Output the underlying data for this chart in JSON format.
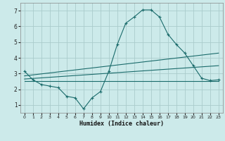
{
  "xlabel": "Humidex (Indice chaleur)",
  "background_color": "#cceaea",
  "grid_color": "#aacccc",
  "line_color": "#1a6b6b",
  "xlim": [
    -0.5,
    23.5
  ],
  "ylim": [
    0.5,
    7.5
  ],
  "xticks": [
    0,
    1,
    2,
    3,
    4,
    5,
    6,
    7,
    8,
    9,
    10,
    11,
    12,
    13,
    14,
    15,
    16,
    17,
    18,
    19,
    20,
    21,
    22,
    23
  ],
  "yticks": [
    1,
    2,
    3,
    4,
    5,
    6,
    7
  ],
  "curve1_x": [
    0,
    1,
    2,
    3,
    4,
    5,
    6,
    7,
    8,
    9,
    10,
    11,
    12,
    13,
    14,
    15,
    16,
    17,
    18,
    19,
    20,
    21,
    22,
    23
  ],
  "curve1_y": [
    3.15,
    2.6,
    2.3,
    2.2,
    2.1,
    1.55,
    1.45,
    0.75,
    1.45,
    1.85,
    3.15,
    4.85,
    6.2,
    6.6,
    7.05,
    7.05,
    6.6,
    5.5,
    4.85,
    4.3,
    3.5,
    2.7,
    2.55,
    2.6
  ],
  "line1_x": [
    0,
    23
  ],
  "line1_y": [
    2.85,
    4.3
  ],
  "line2_x": [
    0,
    23
  ],
  "line2_y": [
    2.65,
    3.5
  ],
  "line3_x": [
    0,
    23
  ],
  "line3_y": [
    2.5,
    2.5
  ]
}
